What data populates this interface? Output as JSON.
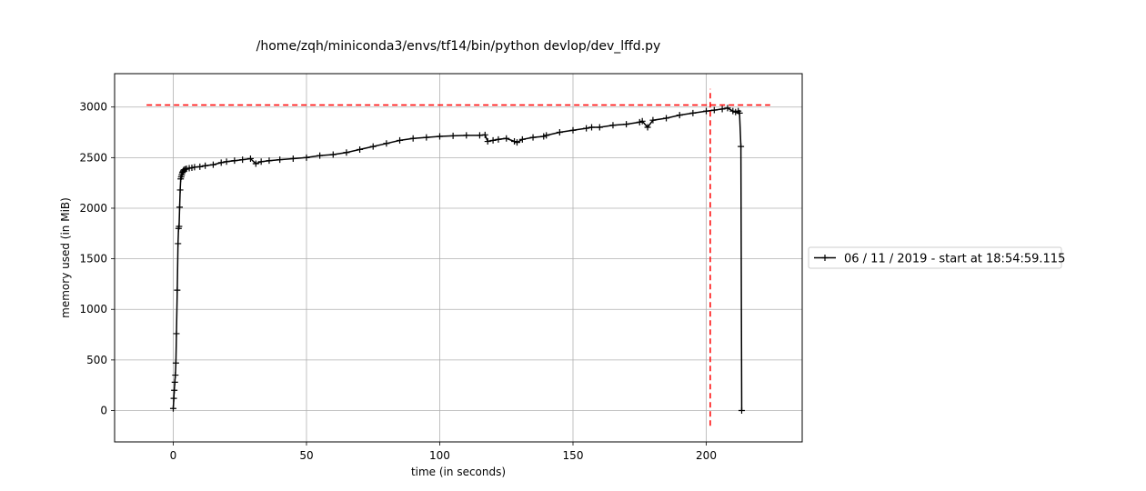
{
  "chart_data": {
    "type": "line",
    "title": "/home/zqh/miniconda3/envs/tf14/bin/python devlop/dev_lffd.py",
    "xlabel": "time (in seconds)",
    "ylabel": "memory used (in MiB)",
    "xlim": [
      -22,
      236
    ],
    "ylim": [
      -310,
      3330
    ],
    "x_ticks": [
      0,
      50,
      100,
      150,
      200
    ],
    "x_tick_labels": [
      "0",
      "50",
      "100",
      "150",
      "200"
    ],
    "y_ticks": [
      0,
      500,
      1000,
      1500,
      2000,
      2500,
      3000
    ],
    "y_tick_labels": [
      "0",
      "500",
      "1000",
      "1500",
      "2000",
      "2500",
      "3000"
    ],
    "grid": true,
    "legend_position": "outside-right",
    "series": [
      {
        "name": "06 / 11 / 2019 - start at 18:54:59.115",
        "color": "#000000",
        "marker": "+",
        "x": [
          0,
          0.2,
          0.4,
          0.6,
          0.8,
          1.0,
          1.2,
          1.5,
          1.8,
          2.0,
          2.2,
          2.4,
          2.6,
          2.8,
          3.0,
          3.2,
          3.4,
          3.6,
          3.8,
          4.0,
          4.5,
          5,
          6,
          7,
          8,
          10,
          12,
          15,
          18,
          20,
          23,
          26,
          29,
          31,
          33,
          36,
          40,
          45,
          50,
          55,
          60,
          65,
          70,
          75,
          80,
          85,
          90,
          95,
          100,
          105,
          110,
          115,
          117,
          118,
          120,
          122,
          125,
          128,
          129,
          131,
          135,
          139,
          140,
          145,
          150,
          155,
          157,
          160,
          165,
          170,
          175,
          176,
          178,
          180,
          185,
          190,
          195,
          200,
          203,
          206,
          208,
          210,
          211,
          212,
          212.5,
          213,
          213.3
        ],
        "y": [
          20,
          120,
          200,
          280,
          350,
          470,
          760,
          1190,
          1650,
          1800,
          1820,
          2010,
          2180,
          2290,
          2310,
          2330,
          2350,
          2360,
          2370,
          2380,
          2385,
          2390,
          2395,
          2400,
          2405,
          2410,
          2420,
          2430,
          2450,
          2460,
          2470,
          2480,
          2490,
          2440,
          2460,
          2470,
          2480,
          2490,
          2500,
          2520,
          2530,
          2550,
          2580,
          2610,
          2640,
          2670,
          2690,
          2700,
          2710,
          2715,
          2720,
          2720,
          2725,
          2660,
          2670,
          2680,
          2690,
          2660,
          2650,
          2680,
          2700,
          2710,
          2720,
          2750,
          2770,
          2790,
          2800,
          2800,
          2820,
          2830,
          2850,
          2860,
          2800,
          2870,
          2890,
          2920,
          2940,
          2960,
          2970,
          2980,
          2990,
          2960,
          2950,
          2960,
          2940,
          2610,
          0
        ]
      }
    ],
    "reference_lines": [
      {
        "orientation": "horizontal",
        "y": 3020,
        "x_from": -10,
        "x_to": 224,
        "color": "#ff0000",
        "style": "dashed"
      },
      {
        "orientation": "vertical",
        "x": 201.5,
        "y_from": -150,
        "y_to": 3180,
        "color": "#ff0000",
        "style": "dashed"
      }
    ]
  }
}
